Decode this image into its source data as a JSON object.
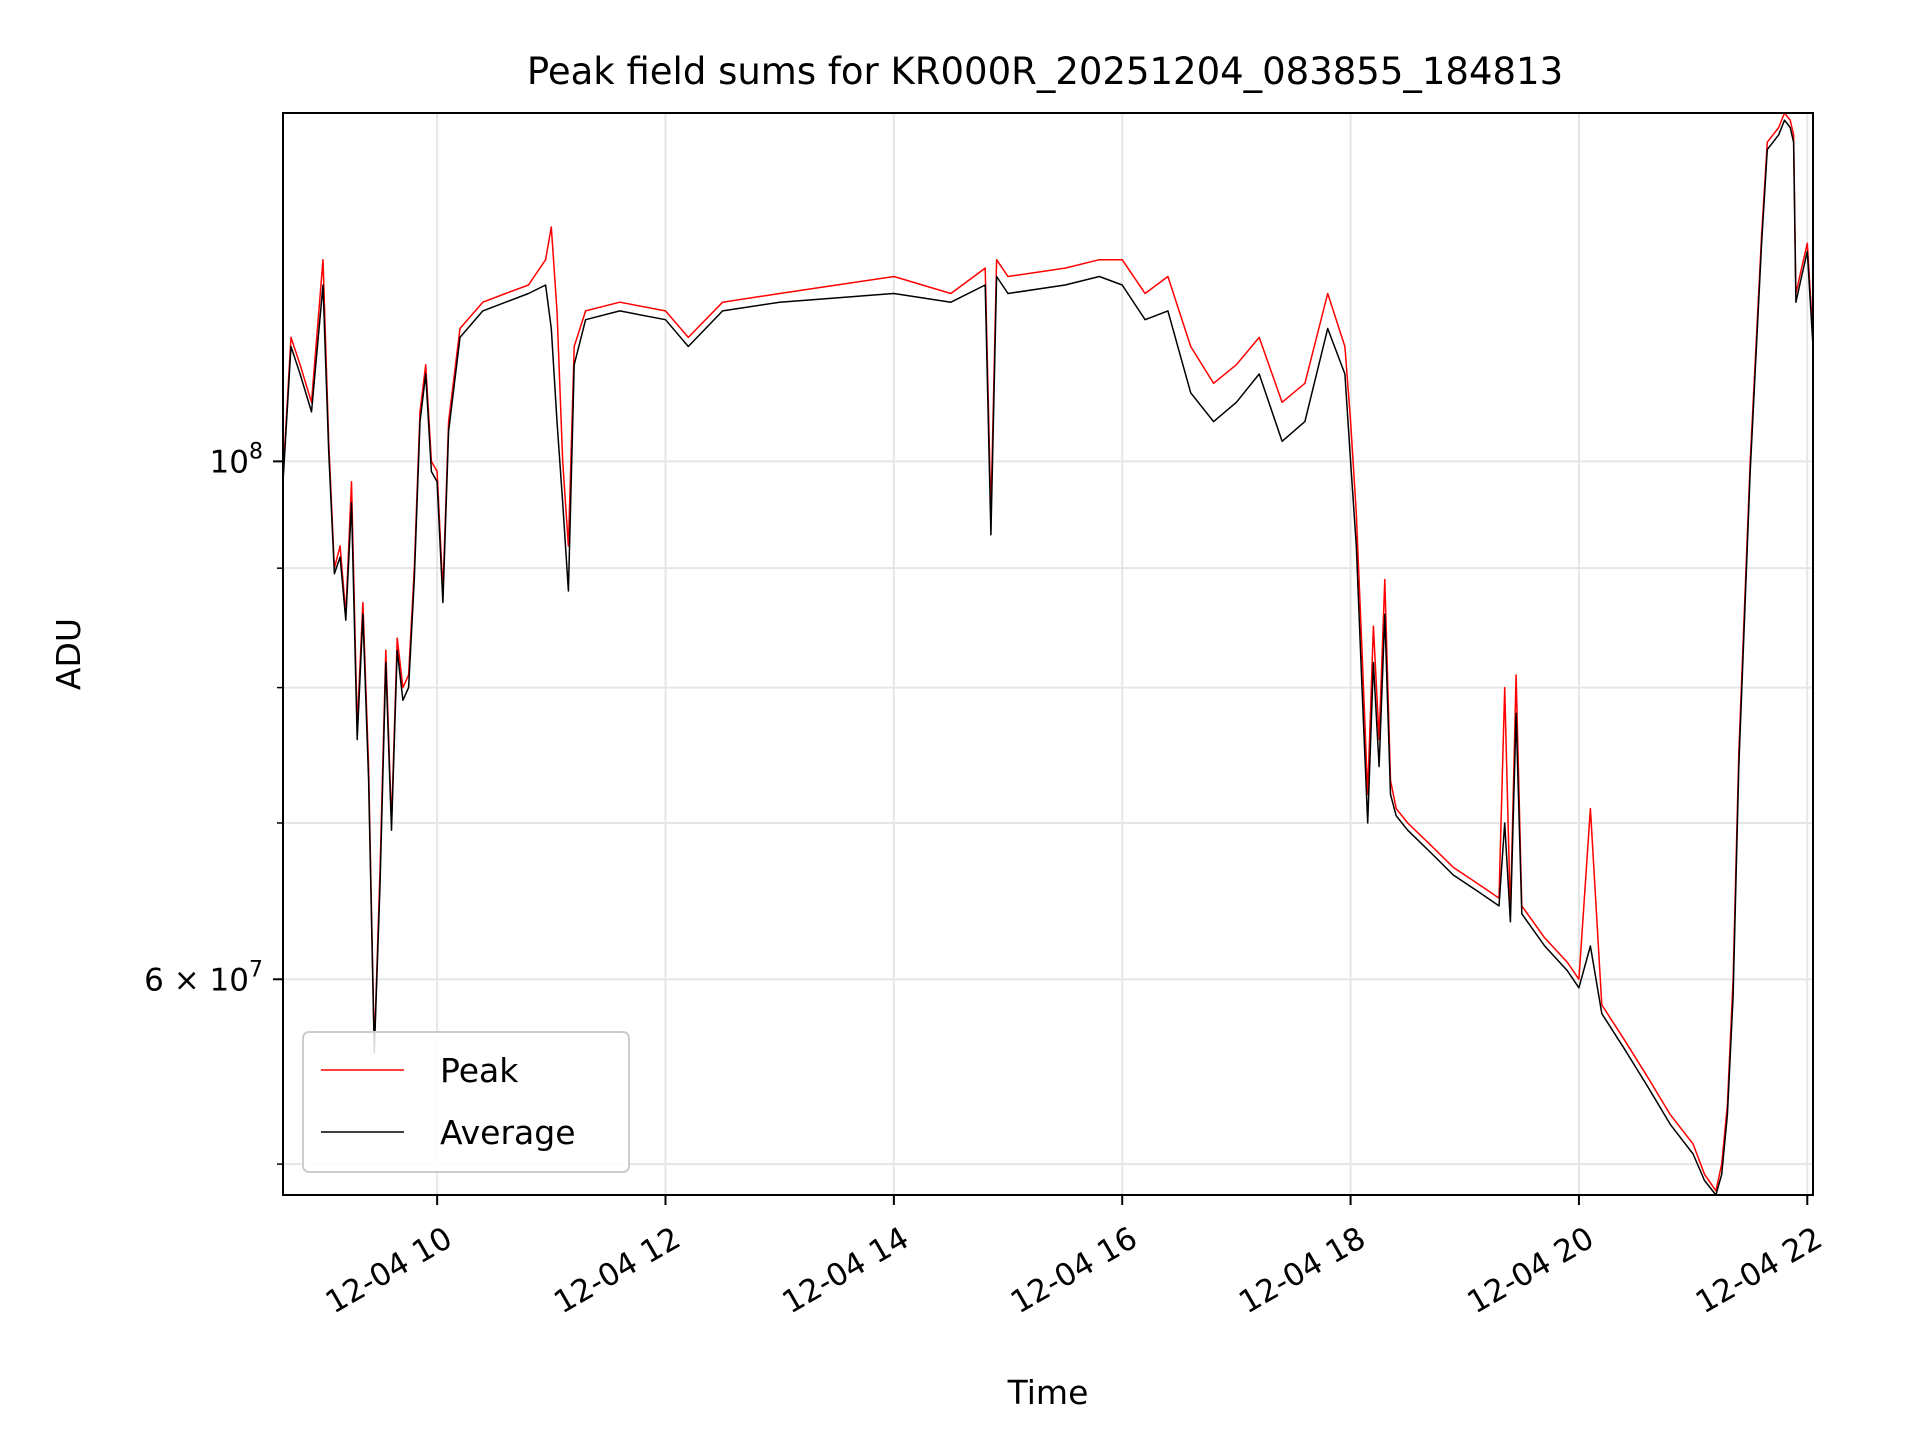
{
  "chart_data": {
    "type": "line",
    "title": "Peak field sums for KR000R_20251204_083855_184813",
    "xlabel": "Time",
    "ylabel": "ADU",
    "yscale": "log",
    "xlim": [
      8.65,
      22.05
    ],
    "ylim": [
      48500000,
      141000000
    ],
    "grid": true,
    "legend_position": "lower-left",
    "x_ticks": [
      {
        "value": 10,
        "label": "12-04 10"
      },
      {
        "value": 12,
        "label": "12-04 12"
      },
      {
        "value": 14,
        "label": "12-04 14"
      },
      {
        "value": 16,
        "label": "12-04 16"
      },
      {
        "value": 18,
        "label": "12-04 18"
      },
      {
        "value": 20,
        "label": "12-04 20"
      },
      {
        "value": 22,
        "label": "12-04 22"
      }
    ],
    "y_major_ticks": [
      {
        "value": 100000000,
        "base": "10",
        "exp": "8",
        "mult": ""
      },
      {
        "value": 60000000,
        "base": "10",
        "exp": "7",
        "mult": "6 × "
      }
    ],
    "y_minor_ticks": [
      50000000,
      70000000,
      80000000,
      90000000
    ],
    "series": [
      {
        "name": "Peak",
        "color": "#ff0000",
        "x": [
          8.65,
          8.72,
          8.8,
          8.9,
          9.0,
          9.05,
          9.1,
          9.15,
          9.2,
          9.25,
          9.3,
          9.35,
          9.4,
          9.45,
          9.5,
          9.55,
          9.6,
          9.65,
          9.7,
          9.75,
          9.8,
          9.85,
          9.9,
          9.95,
          10.0,
          10.05,
          10.1,
          10.2,
          10.4,
          10.6,
          10.8,
          10.95,
          11.0,
          11.05,
          11.1,
          11.15,
          11.2,
          11.3,
          11.6,
          12.0,
          12.2,
          12.5,
          13.0,
          13.5,
          14.0,
          14.5,
          14.8,
          14.85,
          14.9,
          15.0,
          15.5,
          15.8,
          16.0,
          16.2,
          16.4,
          16.6,
          16.8,
          17.0,
          17.2,
          17.4,
          17.6,
          17.8,
          17.95,
          18.0,
          18.05,
          18.1,
          18.15,
          18.2,
          18.25,
          18.3,
          18.35,
          18.4,
          18.5,
          18.7,
          18.9,
          19.1,
          19.3,
          19.35,
          19.4,
          19.45,
          19.5,
          19.7,
          19.9,
          20.0,
          20.1,
          20.2,
          20.4,
          20.6,
          20.8,
          21.0,
          21.1,
          21.2,
          21.25,
          21.3,
          21.35,
          21.4,
          21.5,
          21.6,
          21.65,
          21.7,
          21.75,
          21.8,
          21.85,
          21.88,
          21.9,
          21.95,
          22.0,
          22.05
        ],
        "y": [
          98500000,
          113000000,
          110000000,
          106000000,
          122000000,
          102000000,
          90000000,
          92000000,
          86000000,
          98000000,
          77000000,
          87000000,
          74000000,
          56000000,
          67000000,
          83000000,
          70000000,
          84000000,
          80000000,
          81000000,
          90000000,
          105000000,
          110000000,
          100000000,
          99000000,
          88000000,
          104000000,
          114000000,
          117000000,
          118000000,
          119000000,
          122000000,
          126000000,
          116000000,
          100000000,
          92000000,
          112000000,
          116000000,
          117000000,
          116000000,
          113000000,
          117000000,
          118000000,
          119000000,
          120000000,
          118000000,
          121000000,
          95000000,
          122000000,
          120000000,
          121000000,
          122000000,
          122000000,
          118000000,
          120000000,
          112000000,
          108000000,
          110000000,
          113000000,
          106000000,
          108000000,
          118000000,
          112000000,
          104000000,
          95000000,
          83000000,
          72000000,
          85000000,
          76000000,
          89000000,
          73000000,
          71000000,
          70000000,
          68500000,
          67000000,
          66000000,
          65000000,
          80000000,
          64000000,
          81000000,
          64500000,
          62500000,
          61000000,
          60000000,
          71000000,
          58500000,
          56500000,
          54500000,
          52500000,
          51000000,
          49500000,
          48700000,
          50000000,
          53000000,
          60000000,
          75000000,
          100000000,
          125000000,
          137000000,
          138000000,
          139000000,
          141000000,
          140000000,
          138000000,
          118000000,
          121000000,
          124000000,
          113000000
        ]
      },
      {
        "name": "Average",
        "color": "#000000",
        "x": [
          8.65,
          8.72,
          8.8,
          8.9,
          9.0,
          9.05,
          9.1,
          9.15,
          9.2,
          9.25,
          9.3,
          9.35,
          9.4,
          9.45,
          9.5,
          9.55,
          9.6,
          9.65,
          9.7,
          9.75,
          9.8,
          9.85,
          9.9,
          9.95,
          10.0,
          10.05,
          10.1,
          10.2,
          10.4,
          10.6,
          10.8,
          10.95,
          11.0,
          11.05,
          11.1,
          11.15,
          11.2,
          11.3,
          11.6,
          12.0,
          12.2,
          12.5,
          13.0,
          13.5,
          14.0,
          14.5,
          14.8,
          14.85,
          14.9,
          15.0,
          15.5,
          15.8,
          16.0,
          16.2,
          16.4,
          16.6,
          16.8,
          17.0,
          17.2,
          17.4,
          17.6,
          17.8,
          17.95,
          18.0,
          18.05,
          18.1,
          18.15,
          18.2,
          18.25,
          18.3,
          18.35,
          18.4,
          18.5,
          18.7,
          18.9,
          19.1,
          19.3,
          19.35,
          19.4,
          19.45,
          19.5,
          19.7,
          19.9,
          20.0,
          20.1,
          20.2,
          20.4,
          20.6,
          20.8,
          21.0,
          21.1,
          21.2,
          21.25,
          21.3,
          21.35,
          21.4,
          21.5,
          21.6,
          21.65,
          21.7,
          21.75,
          21.8,
          21.85,
          21.88,
          21.9,
          21.95,
          22.0,
          22.05
        ],
        "y": [
          98000000,
          112000000,
          109000000,
          105000000,
          119000000,
          101000000,
          89500000,
          91000000,
          85500000,
          96000000,
          76000000,
          86000000,
          73000000,
          55800000,
          66000000,
          82000000,
          69500000,
          83000000,
          79000000,
          80000000,
          89000000,
          104000000,
          109000000,
          99000000,
          98000000,
          87000000,
          103000000,
          113000000,
          116000000,
          117000000,
          118000000,
          119000000,
          114000000,
          104000000,
          96000000,
          88000000,
          110000000,
          115000000,
          116000000,
          115000000,
          112000000,
          116000000,
          117000000,
          117500000,
          118000000,
          117000000,
          119000000,
          93000000,
          120000000,
          118000000,
          119000000,
          120000000,
          119000000,
          115000000,
          116000000,
          107000000,
          104000000,
          106000000,
          109000000,
          102000000,
          104000000,
          114000000,
          109000000,
          100000000,
          92000000,
          80000000,
          70000000,
          82000000,
          74000000,
          86000000,
          72000000,
          70500000,
          69500000,
          68000000,
          66500000,
          65500000,
          64500000,
          70000000,
          63500000,
          78000000,
          64000000,
          62000000,
          60500000,
          59500000,
          62000000,
          58000000,
          56000000,
          54000000,
          52000000,
          50500000,
          49200000,
          48500000,
          49500000,
          52500000,
          59000000,
          74000000,
          99000000,
          124000000,
          136000000,
          137000000,
          138000000,
          140000000,
          139000000,
          137000000,
          117000000,
          120000000,
          123000000,
          112000000
        ]
      }
    ]
  }
}
